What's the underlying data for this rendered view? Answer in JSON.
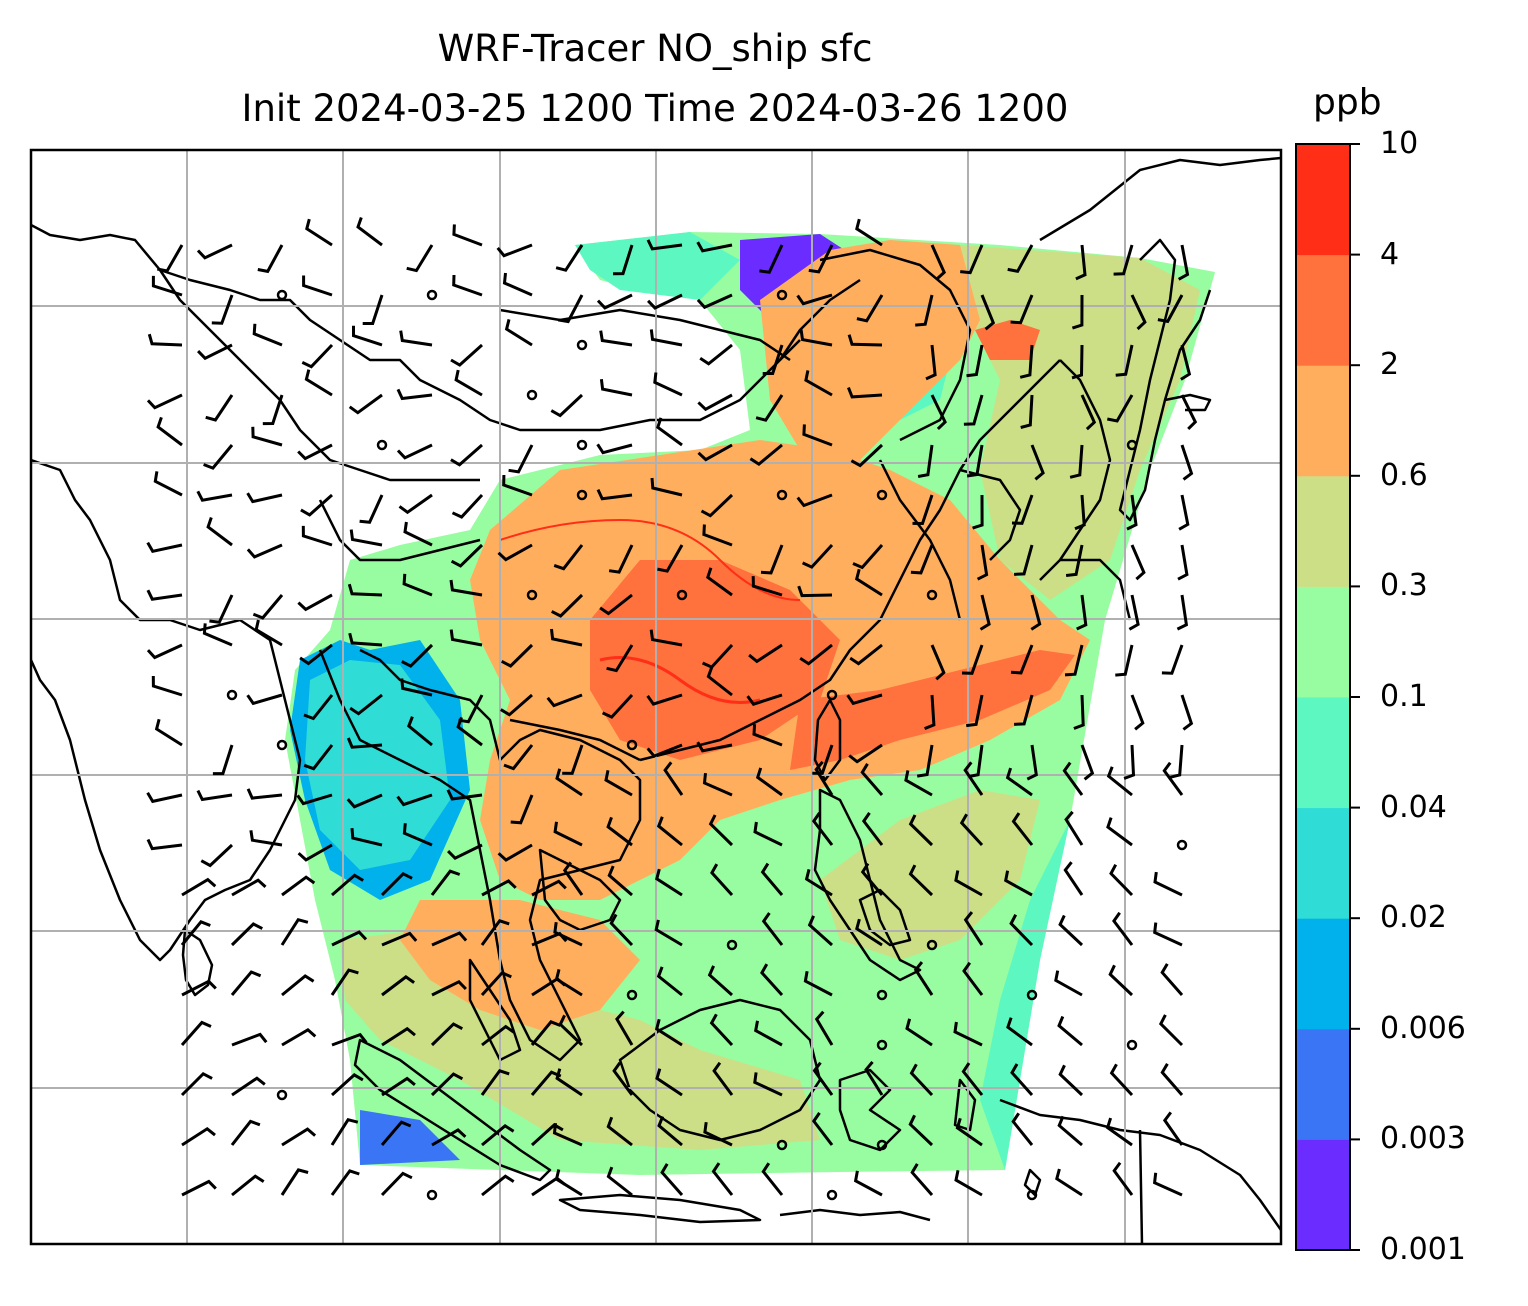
{
  "title": {
    "line1": "WRF-Tracer NO_ship sfc",
    "line2": "Init 2024-03-25 1200 Time 2024-03-26 1200"
  },
  "colorbar": {
    "unit": "ppb",
    "levels": [
      "0.001",
      "0.003",
      "0.006",
      "0.02",
      "0.04",
      "0.1",
      "0.3",
      "0.6",
      "2",
      "4",
      "10"
    ],
    "colors": [
      "#6a2cff",
      "#3a75f5",
      "#00b1ec",
      "#2fdcd6",
      "#5df8c1",
      "#98fda0",
      "#ccdf86",
      "#ffae5e",
      "#ff713d",
      "#ff2e16"
    ]
  },
  "map": {
    "background": "#ffffff",
    "gridlines": true,
    "gridline_color": "#b0b0b0",
    "coastline_color": "#000000",
    "wind_barb_color": "#000000"
  }
}
